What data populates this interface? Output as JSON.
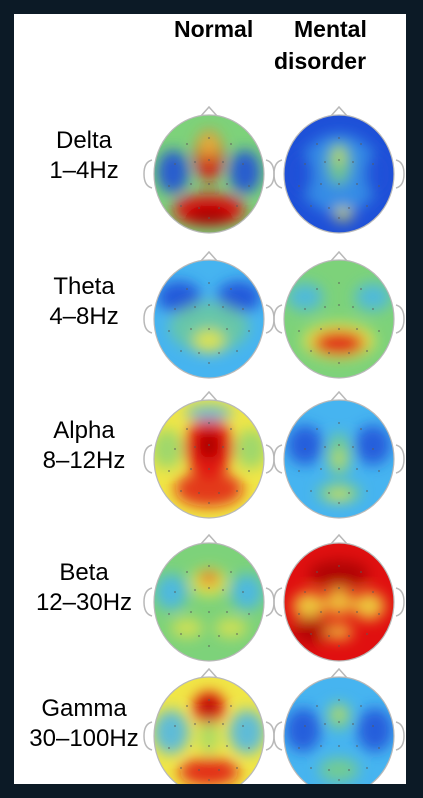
{
  "column_headers": [
    "Normal",
    "Mental",
    "disorder"
  ],
  "bands": [
    {
      "name": "Delta",
      "range": "1–4Hz"
    },
    {
      "name": "Theta",
      "range": "4–8Hz"
    },
    {
      "name": "Alpha",
      "range": "8–12Hz"
    },
    {
      "name": "Beta",
      "range": "12–30Hz"
    },
    {
      "name": "Gamma",
      "range": "30–100Hz"
    }
  ],
  "colors": {
    "frame_bg": "#0c1a26",
    "panel_bg": "#ffffff",
    "map_low": "#1e50d8",
    "map_mid_low": "#46b4f0",
    "map_mid": "#7dd27a",
    "map_mid_high": "#f0e646",
    "map_high": "#e01010",
    "map_max": "#a00000"
  }
}
